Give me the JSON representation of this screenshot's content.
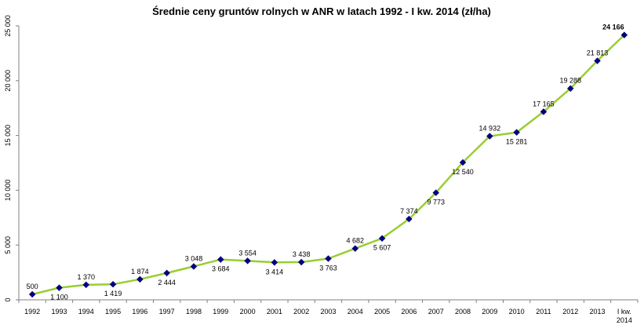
{
  "chart_data": {
    "type": "line",
    "title": "Średnie ceny gruntów rolnych w ANR w latach 1992 - I kw. 2014 (zł/ha)",
    "xlabel": "",
    "ylabel": "",
    "ylim": [
      0,
      25000
    ],
    "yticks": [
      0,
      5000,
      10000,
      15000,
      20000,
      25000
    ],
    "ytick_labels": [
      "0",
      "5 000",
      "10 000",
      "15 000",
      "20 000",
      "25 000"
    ],
    "grid": false,
    "legend": "none",
    "categories": [
      "1992",
      "1993",
      "1994",
      "1995",
      "1996",
      "1997",
      "1998",
      "1999",
      "2000",
      "2001",
      "2002",
      "2003",
      "2004",
      "2005",
      "2006",
      "2007",
      "2008",
      "2009",
      "2010",
      "2011",
      "2012",
      "2013",
      "I kw. 2014"
    ],
    "series": [
      {
        "values": [
          500,
          1100,
          1370,
          1419,
          1874,
          2444,
          3048,
          3684,
          3554,
          3414,
          3438,
          3763,
          4682,
          5607,
          7374,
          9773,
          12540,
          14932,
          15281,
          17165,
          19288,
          21813,
          24166
        ],
        "labels": [
          "500",
          "1 100",
          "1 370",
          "1 419",
          "1 874",
          "2 444",
          "3 048",
          "3 684",
          "3 554",
          "3 414",
          "3 438",
          "3 763",
          "4 682",
          "5 607",
          "7 374",
          "9 773",
          "12 540",
          "14 932",
          "15 281",
          "17 165",
          "19 288",
          "21 813",
          "24 166"
        ],
        "label_positions": [
          "above",
          "below",
          "above",
          "below",
          "above",
          "below",
          "above",
          "below",
          "above",
          "below",
          "above",
          "below",
          "above",
          "below",
          "above",
          "below",
          "below",
          "above",
          "below",
          "above",
          "above",
          "above",
          "above"
        ],
        "color": "#9acd32",
        "marker_color": "#000080"
      }
    ]
  }
}
